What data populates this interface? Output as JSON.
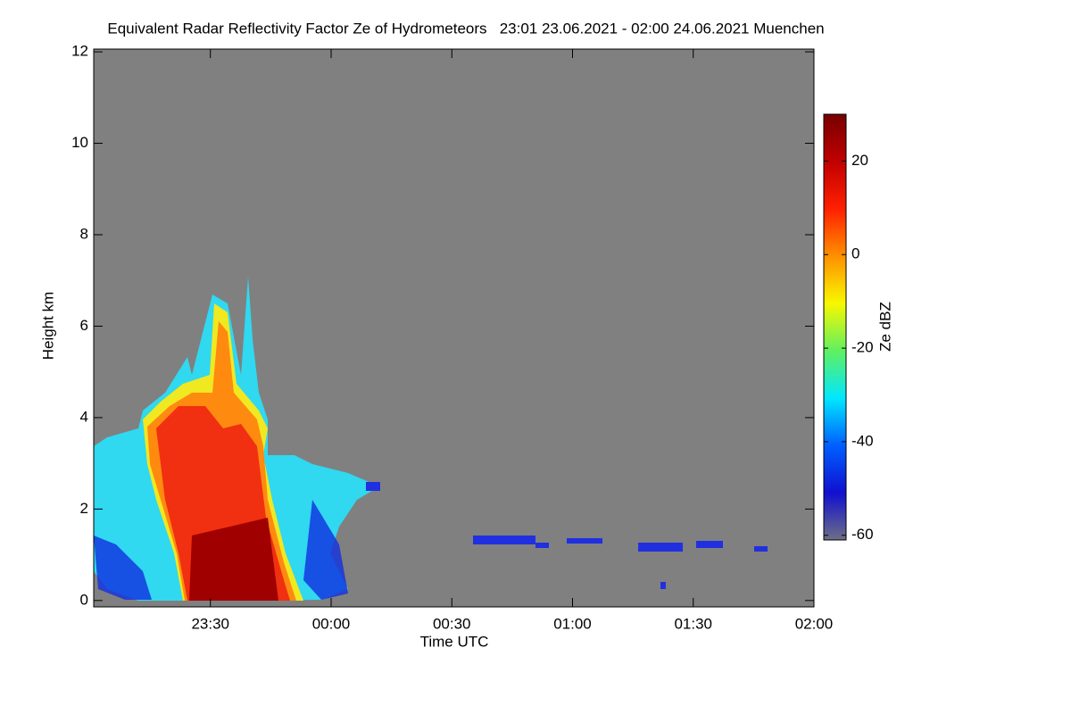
{
  "chart_data": {
    "type": "heatmap",
    "title": "Equivalent Radar Reflectivity Factor Ze of Hydrometeors   23:01 23.06.2021 - 02:00 24.06.2021 Muenchen",
    "x_label": "Time UTC",
    "y_label": "Height km",
    "colorbar_label": "Ze dBZ",
    "xlim": [
      23.0167,
      26
    ],
    "xticks": [
      {
        "value": 23.5,
        "label": "23:30"
      },
      {
        "value": 24,
        "label": "00:00"
      },
      {
        "value": 24.5,
        "label": "00:30"
      },
      {
        "value": 25,
        "label": "01:00"
      },
      {
        "value": 25.5,
        "label": "01:30"
      },
      {
        "value": 26,
        "label": "02:00"
      }
    ],
    "ylim": [
      -0.14,
      12.06
    ],
    "yticks": [
      0,
      2,
      4,
      6,
      8,
      10,
      12
    ],
    "clim": [
      -61,
      30
    ],
    "cticks": [
      -60,
      -40,
      -20,
      0,
      20
    ],
    "colormap": [
      "#6e6e86",
      "#1010d0",
      "#0060ff",
      "#00e8ff",
      "#60f060",
      "#f8f800",
      "#ff9000",
      "#ff2000",
      "#c00000",
      "#780000"
    ],
    "background": "#808080"
  }
}
